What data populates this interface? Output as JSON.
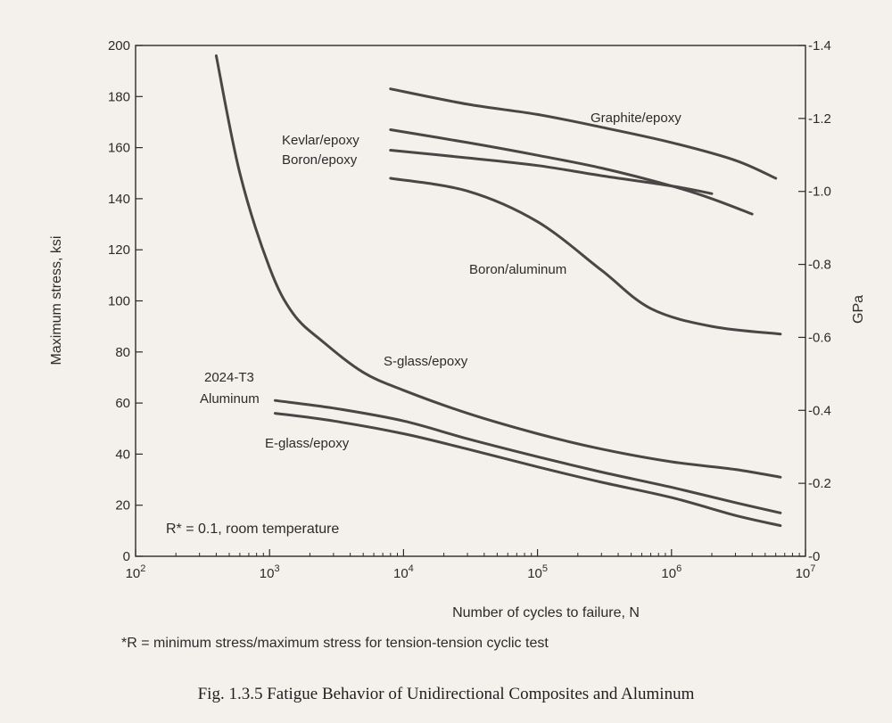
{
  "caption": "Fig. 1.3.5 Fatigue Behavior of Unidirectional Composites and Aluminum",
  "chart_data": {
    "type": "line",
    "x_scale": "log",
    "xlim": [
      100,
      10000000
    ],
    "ylim": [
      0,
      200
    ],
    "y2lim": [
      0,
      1.4
    ],
    "xlabel": "Number of cycles to failure, N",
    "ylabel": "Maximum stress, ksi",
    "y2label": "GPa",
    "xticks": [
      {
        "value": 100,
        "base": "10",
        "exp": "2"
      },
      {
        "value": 1000,
        "base": "10",
        "exp": "3"
      },
      {
        "value": 10000,
        "base": "10",
        "exp": "4"
      },
      {
        "value": 100000,
        "base": "10",
        "exp": "5"
      },
      {
        "value": 1000000,
        "base": "10",
        "exp": "6"
      },
      {
        "value": 10000000,
        "base": "10",
        "exp": "7"
      }
    ],
    "yticks": [
      0,
      20,
      40,
      60,
      80,
      100,
      120,
      140,
      160,
      180,
      200
    ],
    "y2ticks": [
      "0",
      "0.2",
      "0.4",
      "0.6",
      "0.8",
      "1.0",
      "1.2",
      "1.4"
    ],
    "y2tick_values": [
      0,
      0.2,
      0.4,
      0.6,
      0.8,
      1.0,
      1.2,
      1.4
    ],
    "annotations": [
      "R* = 0.1, room temperature",
      "*R = minimum stress/maximum stress for tension-tension cyclic test"
    ],
    "series": [
      {
        "name": "Graphite/epoxy",
        "x": [
          8000,
          30000,
          100000,
          300000,
          1000000,
          3000000,
          6000000
        ],
        "y": [
          183,
          177,
          173,
          168,
          162,
          155,
          148
        ]
      },
      {
        "name": "Kevlar/epoxy",
        "x": [
          8000,
          30000,
          100000,
          300000,
          1000000,
          2000000,
          4000000
        ],
        "y": [
          167,
          162,
          157,
          152,
          145,
          140,
          134
        ]
      },
      {
        "name": "Boron/epoxy",
        "x": [
          8000,
          30000,
          100000,
          300000,
          1000000,
          2000000
        ],
        "y": [
          159,
          156,
          153,
          149,
          145,
          142
        ]
      },
      {
        "name": "Boron/aluminum",
        "x": [
          8000,
          30000,
          100000,
          300000,
          700000,
          2000000,
          6500000
        ],
        "y": [
          148,
          143,
          131,
          112,
          97,
          90,
          87
        ]
      },
      {
        "name": "S-glass/epoxy",
        "x": [
          400,
          600,
          1000,
          1500,
          2500,
          5000,
          10000,
          30000,
          100000,
          300000,
          1000000,
          3000000,
          6500000
        ],
        "y": [
          196,
          150,
          113,
          95,
          84,
          72,
          65,
          56,
          48,
          42,
          37,
          34,
          31
        ]
      },
      {
        "name": "2024-T3 Aluminum",
        "x": [
          1100,
          3000,
          10000,
          30000,
          100000,
          300000,
          1000000,
          3000000,
          6500000
        ],
        "y": [
          61,
          58,
          53,
          46,
          39,
          33,
          27,
          21,
          17
        ]
      },
      {
        "name": "E-glass/epoxy",
        "x": [
          1100,
          3000,
          10000,
          30000,
          100000,
          300000,
          1000000,
          3000000,
          6500000
        ],
        "y": [
          56,
          53,
          48,
          42,
          35,
          29,
          23,
          16,
          12
        ]
      }
    ],
    "series_labels": [
      {
        "text": "Graphite/epoxy"
      },
      {
        "text": "Kevlar/epoxy"
      },
      {
        "text": "Boron/epoxy"
      },
      {
        "text": "Boron/aluminum"
      },
      {
        "text": "S-glass/epoxy"
      },
      {
        "text": "2024-T3"
      },
      {
        "text": "Aluminum"
      },
      {
        "text": "E-glass/epoxy"
      }
    ],
    "grid": false,
    "line_color": "#4a4646"
  }
}
